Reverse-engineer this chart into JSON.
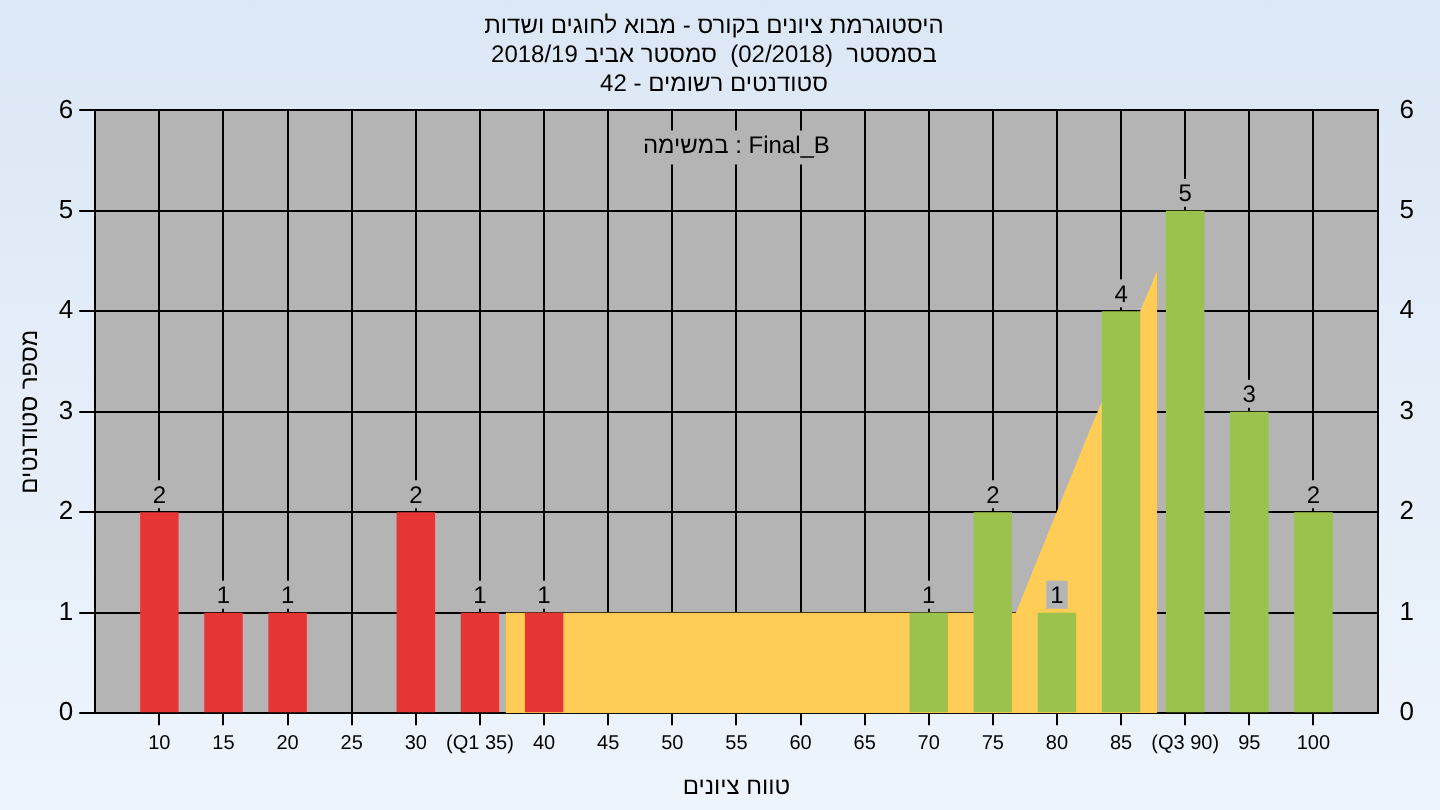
{
  "chart_data": {
    "type": "bar",
    "title": "היסטוגרמת ציונים בקורס - מבוא לחוגים ושדות\nבסמסטר  (02/2018)  סמסטר אביב 2018/19\nסטודנטים רשומים - 42",
    "xlabel": "טווח ציונים",
    "ylabel": "מספר סטודנטים",
    "annotations": [
      "במשימה : Final_B"
    ],
    "series": [
      {
        "type": "area",
        "color": "#ffcc55",
        "x": [
          37,
          76.8,
          82.5,
          87.8
        ],
        "values": [
          1,
          1,
          2.8,
          4.4
        ]
      },
      {
        "x": [
          10,
          15,
          20,
          30,
          35,
          40,
          70,
          75,
          80,
          85,
          90,
          95,
          100
        ],
        "colors": [
          "#e53535",
          "#e53535",
          "#e53535",
          "#e53535",
          "#e53535",
          "#e53535",
          "#9bc24d",
          "#9bc24d",
          "#9bc24d",
          "#9bc24d",
          "#9bc24d",
          "#9bc24d",
          "#9bc24d"
        ],
        "values": [
          2,
          1,
          1,
          2,
          1,
          1,
          1,
          2,
          1,
          4,
          5,
          3,
          2
        ],
        "value_labels": [
          "2",
          "1",
          "1",
          "2",
          "1",
          "1",
          "1",
          "2",
          "1",
          "4",
          "5",
          "3",
          "2"
        ]
      }
    ],
    "xlim": [
      5,
      105
    ],
    "xticks": [
      10,
      15,
      20,
      25,
      30,
      {
        "value": 35,
        "label": "(Q1 35)"
      },
      40,
      45,
      50,
      55,
      60,
      65,
      70,
      75,
      80,
      85,
      {
        "value": 90,
        "label": "(Q3 90)"
      },
      95,
      100
    ],
    "ylim": [
      0,
      6
    ],
    "yticks": [
      0,
      1,
      2,
      3,
      4,
      5,
      6
    ],
    "y2lim": [
      0,
      6
    ],
    "y2ticks": [
      0,
      1,
      2,
      3,
      4,
      5,
      6
    ],
    "grid": true
  }
}
